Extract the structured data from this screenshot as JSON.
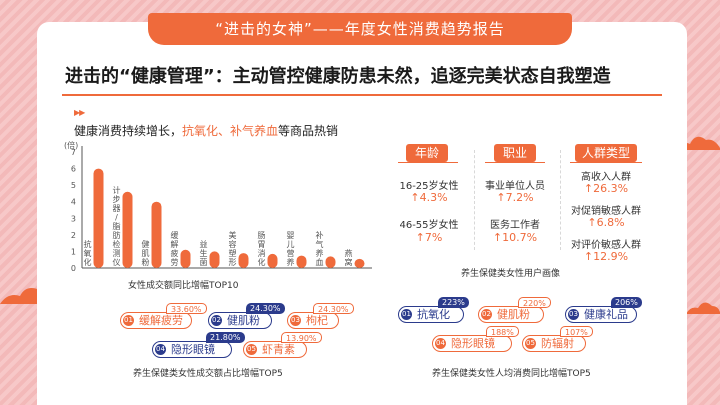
{
  "banner": {
    "title": "“进击的女神”——年度女性消费趋势报告"
  },
  "headline": "进击的“健康管理”：主动管控健康防患未然，追逐完美状态自我塑造",
  "section": {
    "arrows": "▶▶",
    "subtitle_prefix": "健康消费持续增长，",
    "subtitle_highlight": "抗氧化、补气养血",
    "subtitle_suffix": "等商品热销"
  },
  "chart_data": {
    "type": "bar",
    "title": "女性成交额同比增幅TOP10",
    "ylabel": "(倍)",
    "ylim": [
      0,
      7
    ],
    "yticks": [
      0,
      1,
      2,
      3,
      4,
      5,
      6,
      7
    ],
    "categories": [
      "抗氧化",
      "计步器/脂肪检测仪",
      "健肌粉",
      "缓解疲劳",
      "益生菌",
      "美容塑形",
      "肠胃消化",
      "婴儿营养",
      "补气养血",
      "燕窝"
    ],
    "values": [
      6.0,
      4.6,
      4.0,
      1.1,
      1.0,
      0.9,
      0.85,
      0.75,
      0.7,
      0.55
    ],
    "colors": {
      "bar": "#ef6a3b",
      "axis": "#555555",
      "label": "#555555"
    }
  },
  "left_top5": {
    "caption": "养生保健类女性成交额占比增幅TOP5",
    "items": [
      {
        "num": "01",
        "label": "缓解疲劳",
        "pct": "33.60%",
        "color": "#ef6a3b"
      },
      {
        "num": "02",
        "label": "健肌粉",
        "pct": "24.30%",
        "color": "#2b3b8c"
      },
      {
        "num": "03",
        "label": "枸杞",
        "pct": "24.30%",
        "color": "#ef6a3b"
      },
      {
        "num": "04",
        "label": "隐形眼镜",
        "pct": "21.80%",
        "color": "#2b3b8c"
      },
      {
        "num": "05",
        "label": "虾青素",
        "pct": "13.90%",
        "color": "#ef6a3b"
      }
    ]
  },
  "profile": {
    "caption": "养生保健类女性用户画像",
    "age": {
      "title": "年龄",
      "rows": [
        {
          "label": "16-25岁女性",
          "value": "↑4.3%"
        },
        {
          "label": "46-55岁女性",
          "value": "↑7%"
        }
      ]
    },
    "job": {
      "title": "职业",
      "rows": [
        {
          "label": "事业单位人员",
          "value": "↑7.2%"
        },
        {
          "label": "医务工作者",
          "value": "↑10.7%"
        }
      ]
    },
    "crowd": {
      "title": "人群类型",
      "rows": [
        {
          "label": "高收入人群",
          "value": "↑26.3%"
        },
        {
          "label": "对促销敏感人群",
          "value": "↑6.8%"
        },
        {
          "label": "对评价敏感人群",
          "value": "↑12.9%"
        }
      ]
    }
  },
  "right_top5": {
    "caption": "养生保健类女性人均消费同比增幅TOP5",
    "items": [
      {
        "num": "01",
        "label": "抗氧化",
        "pct": "223%",
        "color": "#2b3b8c"
      },
      {
        "num": "02",
        "label": "健肌粉",
        "pct": "220%",
        "color": "#ef6a3b"
      },
      {
        "num": "03",
        "label": "健康礼品",
        "pct": "206%",
        "color": "#2b3b8c"
      },
      {
        "num": "04",
        "label": "隐形眼镜",
        "pct": "188%",
        "color": "#ef6a3b"
      },
      {
        "num": "05",
        "label": "防辐射",
        "pct": "107%",
        "color": "#ef6a3b"
      }
    ]
  }
}
